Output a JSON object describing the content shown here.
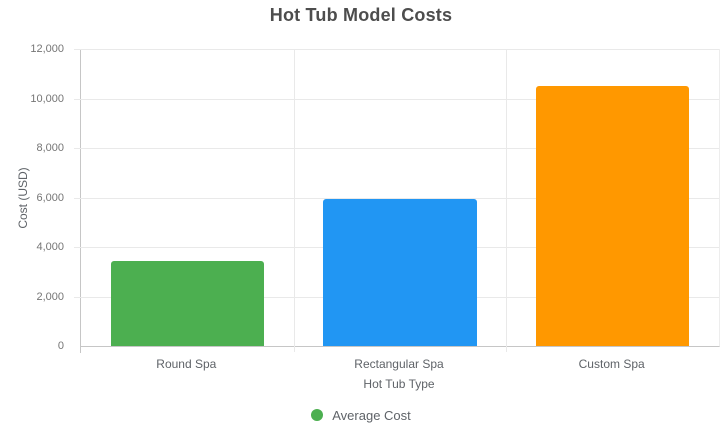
{
  "chart_data": {
    "type": "bar",
    "title": "Hot Tub Model Costs",
    "xlabel": "Hot Tub Type",
    "ylabel": "Cost (USD)",
    "categories": [
      "Round Spa",
      "Rectangular Spa",
      "Custom Spa"
    ],
    "series": [
      {
        "name": "Average Cost",
        "values": [
          3450,
          5950,
          10500
        ]
      }
    ],
    "bar_colors": [
      "#4caf50",
      "#2196f3",
      "#ff9800"
    ],
    "ylim": [
      0,
      12000
    ],
    "ytick_step": 2000,
    "ytick_labels": [
      "0",
      "2,000",
      "4,000",
      "6,000",
      "8,000",
      "10,000",
      "12,000"
    ],
    "grid": true,
    "legend": {
      "position": "bottom",
      "label": "Average Cost",
      "color": "#4caf50"
    }
  }
}
